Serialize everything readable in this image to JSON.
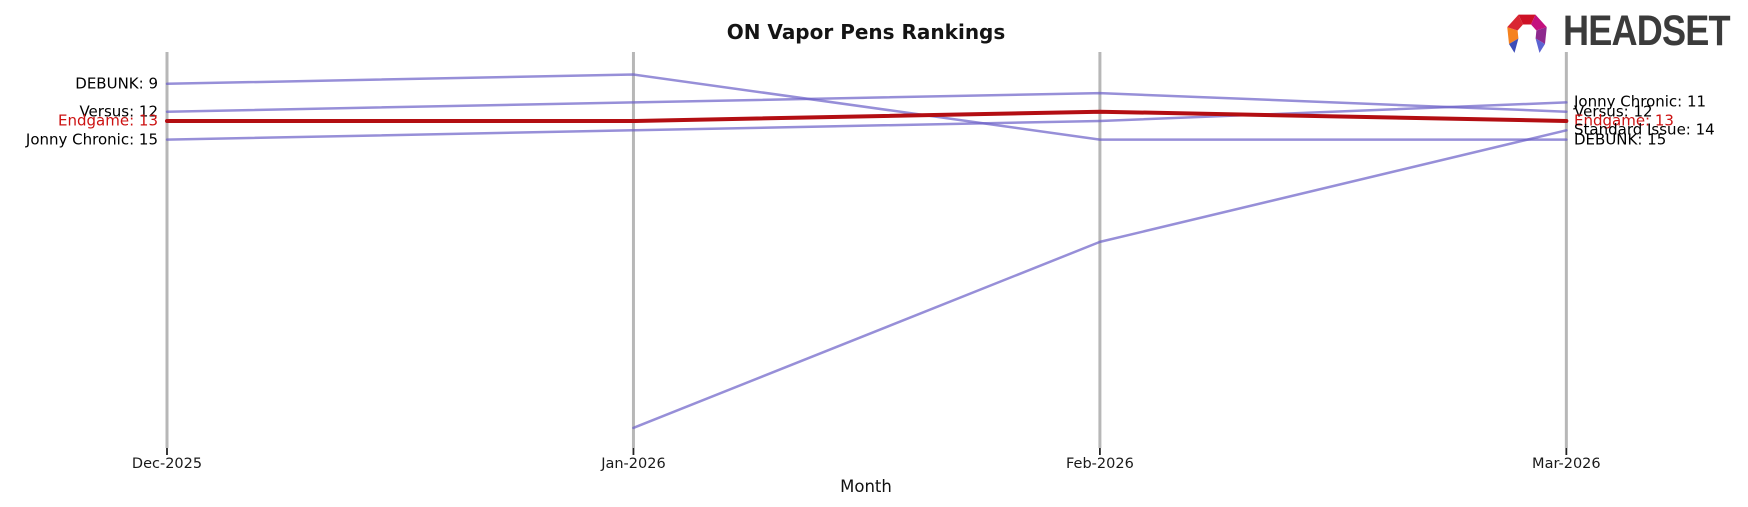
{
  "logo": {
    "text": "HEADSET"
  },
  "chart_data": {
    "type": "line",
    "subtype": "bump-ranking-chart",
    "title": "ON Vapor Pens Rankings",
    "xlabel": "Month",
    "x": [
      "Dec-2025",
      "Jan-2026",
      "Feb-2026",
      "Mar-2026"
    ],
    "y_inverted": true,
    "grid": false,
    "legend": "endpoint-labels",
    "axis_color": "#b7b7b7",
    "series": [
      {
        "name": "DEBUNK",
        "values": [
          9,
          8,
          15,
          15
        ],
        "color": "#6B5FC8",
        "highlight": false
      },
      {
        "name": "Versus",
        "values": [
          12,
          11,
          10,
          12
        ],
        "color": "#6B5FC8",
        "highlight": false
      },
      {
        "name": "Endgame",
        "values": [
          13,
          13,
          12,
          13
        ],
        "color": "#B30E12",
        "highlight": true
      },
      {
        "name": "Jonny Chronic",
        "values": [
          15,
          14,
          13,
          11
        ],
        "color": "#6B5FC8",
        "highlight": false
      },
      {
        "name": "Standard Issue",
        "values": [
          null,
          46,
          26,
          14
        ],
        "color": "#6B5FC8",
        "highlight": false
      }
    ],
    "left_labels": [
      {
        "text": "DEBUNK: 9",
        "rank": 9,
        "color": "#000000"
      },
      {
        "text": "Versus: 12",
        "rank": 12,
        "color": "#000000"
      },
      {
        "text": "Endgame: 13",
        "rank": 13,
        "color": "#CC1111"
      },
      {
        "text": "Jonny Chronic: 15",
        "rank": 15,
        "color": "#000000"
      }
    ],
    "right_labels": [
      {
        "text": "Jonny Chronic: 11",
        "rank": 11,
        "color": "#000000"
      },
      {
        "text": "Versus: 12",
        "rank": 12,
        "color": "#000000"
      },
      {
        "text": "Endgame: 13",
        "rank": 13,
        "color": "#CC1111"
      },
      {
        "text": "Standard Issue: 14",
        "rank": 14,
        "color": "#000000"
      },
      {
        "text": "DEBUNK: 15",
        "rank": 15,
        "color": "#000000"
      }
    ]
  }
}
